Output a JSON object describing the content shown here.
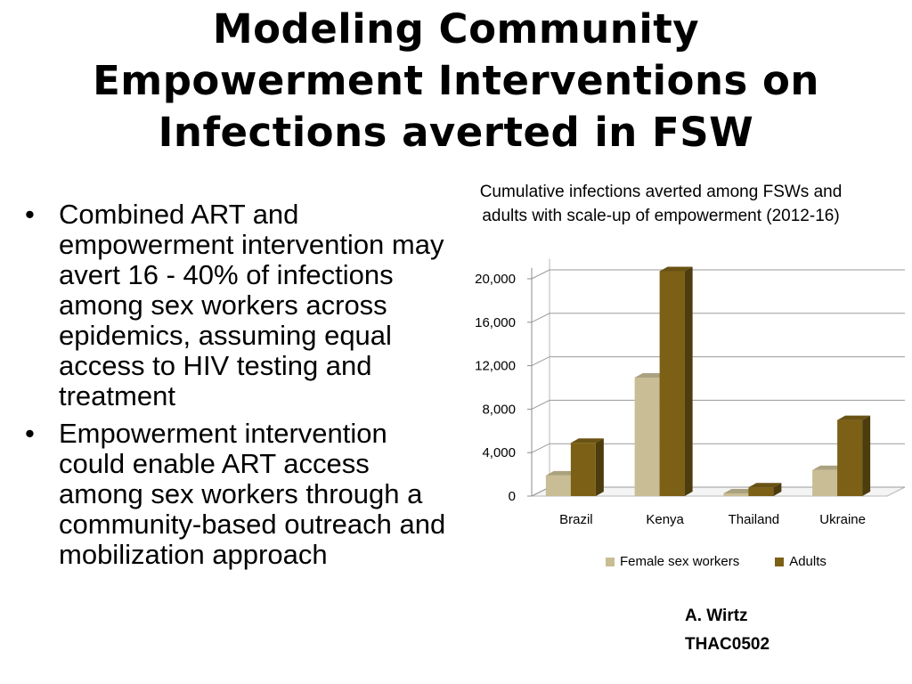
{
  "title": {
    "line1": "Modeling Community",
    "line2": "Empowerment Interventions on",
    "line3": "Infections averted in FSW"
  },
  "bullets": [
    {
      "marker": "•",
      "text": "Combined ART and empowerment intervention may avert 16 - 40% of infections among sex workers across epidemics, assuming equal access to HIV testing and treatment"
    },
    {
      "marker": "•",
      "text": "Empowerment intervention could enable ART access among sex workers through a community-based outreach and mobilization approach"
    }
  ],
  "chart_caption": {
    "line1": "Cumulative infections averted among FSWs and",
    "line2": "adults with scale-up of empowerment (2012-16)"
  },
  "credit": {
    "line1": "A. Wirtz",
    "line2": "THAC0502"
  },
  "chart_data": {
    "type": "bar",
    "title": "Cumulative infections averted among FSWs and adults with scale-up of empowerment (2012-16)",
    "categories": [
      "Brazil",
      "Kenya",
      "Thailand",
      "Ukraine"
    ],
    "series": [
      {
        "name": "Female sex workers",
        "values": [
          1900,
          10900,
          250,
          2400
        ],
        "color": "#c8bd94"
      },
      {
        "name": "Adults",
        "values": [
          4900,
          20700,
          800,
          7000
        ],
        "color": "#7b6016"
      }
    ],
    "y_ticks": [
      0,
      4000,
      8000,
      12000,
      16000,
      20000
    ],
    "y_tick_labels": [
      "0",
      "4,000",
      "8,000",
      "12,000",
      "16,000",
      "20,000"
    ],
    "ylim": [
      0,
      20000
    ],
    "grid": true,
    "style": "3d-clustered-column",
    "legend_position": "bottom"
  }
}
